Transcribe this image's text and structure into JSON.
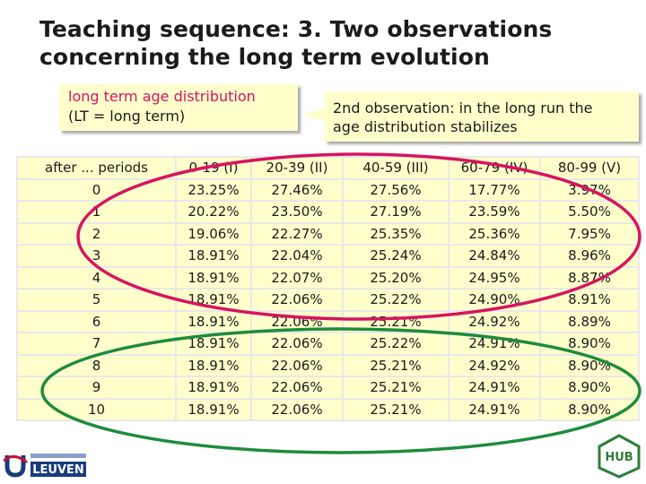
{
  "title": {
    "line1": "Teaching sequence: 3. Two observations",
    "line2": "concerning the long term evolution"
  },
  "callout1": {
    "line1": "long term age distribution",
    "line2": "(LT = long term)"
  },
  "callout2": {
    "line1": "2nd observation: in the long run the",
    "line2": "age distribution stabilizes"
  },
  "table": {
    "headers": [
      "after ... periods",
      "0-19 (I)",
      "20-39 (II)",
      "40-59 (III)",
      "60-79 (IV)",
      "80-99 (V)"
    ],
    "rows": [
      [
        "0",
        "23.25%",
        "27.46%",
        "27.56%",
        "17.77%",
        "3.97%"
      ],
      [
        "1",
        "20.22%",
        "23.50%",
        "27.19%",
        "23.59%",
        "5.50%"
      ],
      [
        "2",
        "19.06%",
        "22.27%",
        "25.35%",
        "25.36%",
        "7.95%"
      ],
      [
        "3",
        "18.91%",
        "22.04%",
        "25.24%",
        "24.84%",
        "8.96%"
      ],
      [
        "4",
        "18.91%",
        "22.07%",
        "25.20%",
        "24.95%",
        "8.87%"
      ],
      [
        "5",
        "18.91%",
        "22.06%",
        "25.22%",
        "24.90%",
        "8.91%"
      ],
      [
        "6",
        "18.91%",
        "22.06%",
        "25.21%",
        "24.92%",
        "8.89%"
      ],
      [
        "7",
        "18.91%",
        "22.06%",
        "25.22%",
        "24.91%",
        "8.90%"
      ],
      [
        "8",
        "18.91%",
        "22.06%",
        "25.21%",
        "24.92%",
        "8.90%"
      ],
      [
        "9",
        "18.91%",
        "22.06%",
        "25.21%",
        "24.91%",
        "8.90%"
      ],
      [
        "10",
        "18.91%",
        "22.06%",
        "25.21%",
        "24.91%",
        "8.90%"
      ]
    ]
  },
  "highlight_colors": {
    "changing_rows": "#d7145f",
    "stable_rows": "#1e8c3c"
  },
  "logos": {
    "left": "LEUVEN",
    "right": "HUB"
  }
}
